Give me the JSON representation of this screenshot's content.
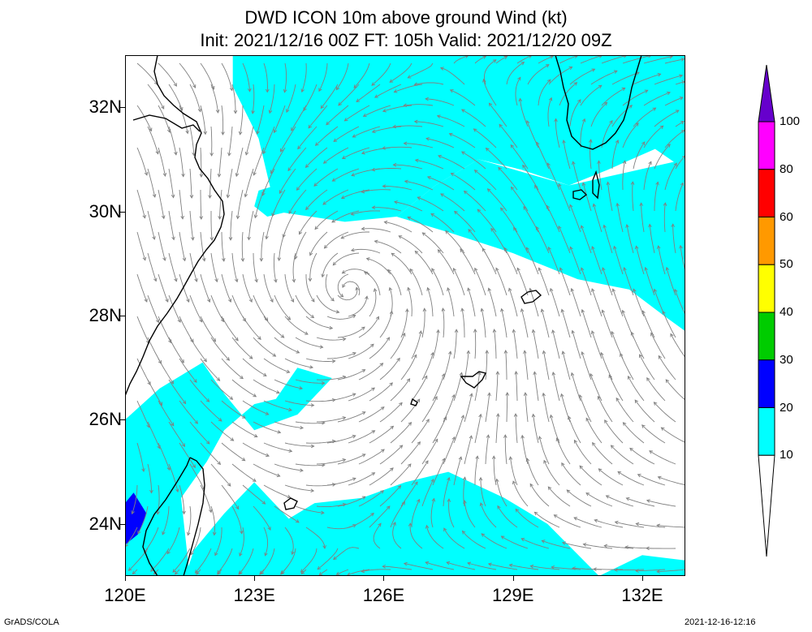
{
  "title": {
    "line1": "DWD ICON 10m above ground Wind (kt)",
    "line2": "Init: 2021/12/16 00Z  FT: 105h  Valid: 2021/12/20 09Z"
  },
  "map": {
    "lon_range": [
      120,
      133
    ],
    "lat_range": [
      23,
      33
    ],
    "lat_ticks": [
      {
        "value": 24,
        "label": "24N"
      },
      {
        "value": 26,
        "label": "26N"
      },
      {
        "value": 28,
        "label": "28N"
      },
      {
        "value": 30,
        "label": "30N"
      },
      {
        "value": 32,
        "label": "32N"
      }
    ],
    "lon_ticks": [
      {
        "value": 120,
        "label": "120E"
      },
      {
        "value": 123,
        "label": "123E"
      },
      {
        "value": 126,
        "label": "126E"
      },
      {
        "value": 129,
        "label": "129E"
      },
      {
        "value": 132,
        "label": "132E"
      }
    ],
    "cyclone_center": {
      "lon": 125.2,
      "lat": 28.5
    },
    "shaded_regions": [
      {
        "name": "wind-10-20-north",
        "class": "10-20",
        "outline": [
          [
            122.5,
            33
          ],
          [
            124.8,
            33
          ],
          [
            133,
            33
          ],
          [
            133,
            30.8
          ],
          [
            132.3,
            31.2
          ],
          [
            131.2,
            30.8
          ],
          [
            130.3,
            30.5
          ],
          [
            129.2,
            30.8
          ],
          [
            128.2,
            31.0
          ],
          [
            127.2,
            30.5
          ],
          [
            126.3,
            29.9
          ],
          [
            125.1,
            29.8
          ],
          [
            123.5,
            30.0
          ],
          [
            123.1,
            31.4
          ],
          [
            122.5,
            32.4
          ]
        ]
      },
      {
        "name": "wind-10-20-east",
        "class": "10-20",
        "outline": [
          [
            126.3,
            29.9
          ],
          [
            127.5,
            29.6
          ],
          [
            129.0,
            29.2
          ],
          [
            130.5,
            28.7
          ],
          [
            131.7,
            28.5
          ],
          [
            132.5,
            28.0
          ],
          [
            133,
            27.7
          ],
          [
            133,
            31.0
          ],
          [
            130.3,
            30.5
          ],
          [
            128.2,
            31.0
          ],
          [
            127.2,
            30.5
          ]
        ]
      },
      {
        "name": "wind-10-20-west",
        "class": "10-20",
        "outline": [
          [
            120,
            23
          ],
          [
            121.5,
            23
          ],
          [
            121.3,
            24.5
          ],
          [
            121.9,
            25.2
          ],
          [
            122.3,
            25.8
          ],
          [
            123.0,
            26.3
          ],
          [
            123.5,
            26.4
          ],
          [
            124.0,
            27.0
          ],
          [
            124.8,
            26.8
          ],
          [
            124.0,
            26.1
          ],
          [
            123.0,
            25.8
          ],
          [
            122.3,
            26.5
          ],
          [
            121.8,
            27.1
          ],
          [
            120.8,
            26.6
          ],
          [
            120,
            26.0
          ]
        ]
      },
      {
        "name": "wind-10-20-south",
        "class": "10-20",
        "outline": [
          [
            121.4,
            23
          ],
          [
            133,
            23
          ],
          [
            133,
            23.3
          ],
          [
            132.0,
            23.4
          ],
          [
            131.0,
            23.0
          ],
          [
            129.8,
            24.0
          ],
          [
            128.8,
            24.5
          ],
          [
            127.5,
            25.0
          ],
          [
            126.5,
            24.8
          ],
          [
            125.5,
            24.5
          ],
          [
            124.4,
            24.4
          ],
          [
            123.8,
            24.1
          ],
          [
            123.0,
            24.8
          ],
          [
            122.3,
            24.2
          ],
          [
            121.9,
            23.8
          ],
          [
            121.6,
            23.5
          ]
        ]
      },
      {
        "name": "wind-10-20-patch",
        "class": "10-20",
        "outline": [
          [
            123.1,
            30.4
          ],
          [
            123.5,
            30.5
          ],
          [
            123.9,
            30.3
          ],
          [
            123.8,
            30.0
          ],
          [
            123.3,
            29.9
          ],
          [
            123.0,
            30.1
          ]
        ]
      }
    ],
    "blue_patch": {
      "name": "wind-20-30-patch",
      "class": "20-30",
      "outline": [
        [
          120,
          24.4
        ],
        [
          120.2,
          24.6
        ],
        [
          120.5,
          24.2
        ],
        [
          120.3,
          23.8
        ],
        [
          120,
          23.6
        ]
      ]
    }
  },
  "colorbar": {
    "levels": [
      "10",
      "20",
      "30",
      "40",
      "50",
      "60",
      "80",
      "100"
    ],
    "colors": [
      "#00ffff",
      "#0000ff",
      "#00cc00",
      "#ffff00",
      "#ff9900",
      "#ff0000",
      "#ff00ff",
      "#6600cc"
    ],
    "below_color": "#ffffff"
  },
  "footer": {
    "left": "GrADS/COLA",
    "right": "2021-12-16-12:16"
  }
}
